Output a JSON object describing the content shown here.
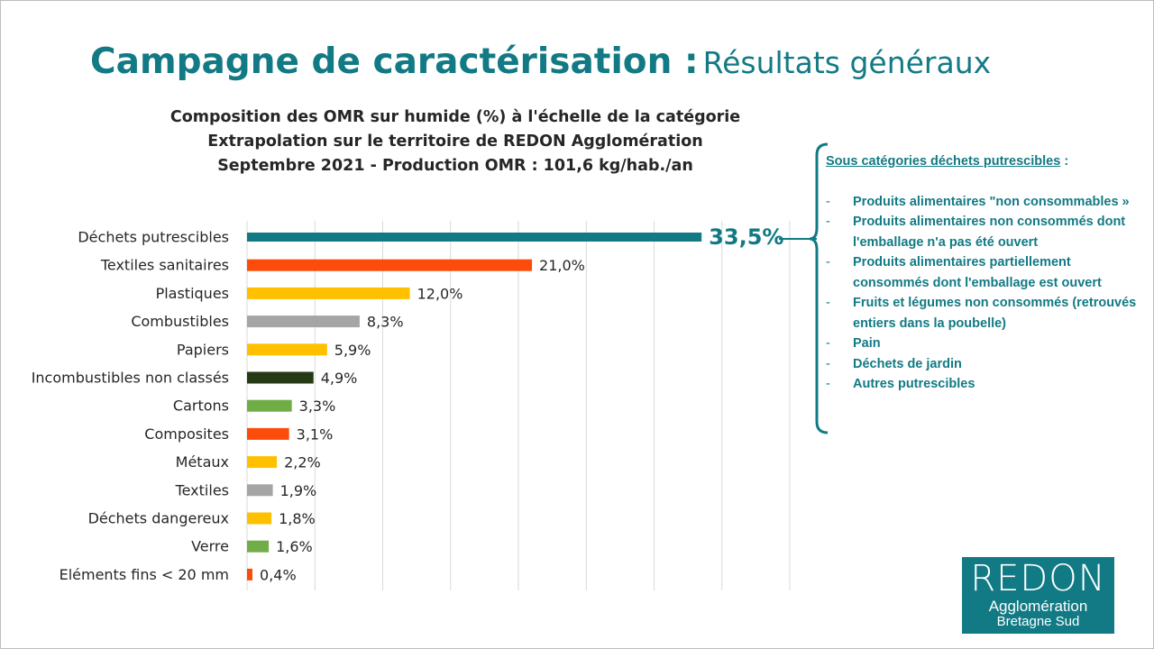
{
  "title": {
    "bold": "Campagne de caractérisation :",
    "normal": "Résultats généraux"
  },
  "subtitle": [
    "Composition des OMR sur humide (%) à l'échelle de la catégorie",
    "Extrapolation sur le territoire de REDON Agglomération",
    "Septembre 2021 - Production OMR : 101,6 kg/hab./an"
  ],
  "chart_data": {
    "type": "bar",
    "orientation": "horizontal",
    "title": "Composition des OMR sur humide (%) à l'échelle de la catégorie",
    "xlim": [
      0,
      40
    ],
    "grid": true,
    "categories": [
      "Déchets putrescibles",
      "Textiles sanitaires",
      "Plastiques",
      "Combustibles",
      "Papiers",
      "Incombustibles non classés",
      "Cartons",
      "Composites",
      "Métaux",
      "Textiles",
      "Déchets dangereux",
      "Verre",
      "Eléments fins < 20 mm"
    ],
    "values": [
      33.5,
      21.0,
      12.0,
      8.3,
      5.9,
      4.9,
      3.3,
      3.1,
      2.2,
      1.9,
      1.8,
      1.6,
      0.4
    ],
    "labels": [
      "33,5%",
      "21,0%",
      "12,0%",
      "8,3%",
      "5,9%",
      "4,9%",
      "3,3%",
      "3,1%",
      "2,2%",
      "1,9%",
      "1,8%",
      "1,6%",
      "0,4%"
    ],
    "colors": [
      "#127a84",
      "#fc4c0c",
      "#ffc000",
      "#a5a5a5",
      "#ffc000",
      "#263a16",
      "#70ad47",
      "#fc4c0c",
      "#ffc000",
      "#a5a5a5",
      "#ffc000",
      "#70ad47",
      "#fc4c0c"
    ]
  },
  "side": {
    "heading": "Sous catégories déchets putrescibles",
    "heading_suffix": " :",
    "dash": "-",
    "items": [
      "Produits alimentaires \"non consommables »",
      "Produits alimentaires non consommés dont l'emballage n'a pas été ouvert",
      "Produits alimentaires partiellement consommés dont l'emballage est ouvert",
      "Fruits et légumes non consommés (retrouvés entiers dans la poubelle)",
      "Pain",
      "Déchets de jardin",
      "Autres putrescibles"
    ]
  },
  "logo": {
    "line1": "REDON",
    "line2": "Agglomération",
    "line3": "Bretagne Sud"
  },
  "colors": {
    "accent": "#127a84"
  }
}
